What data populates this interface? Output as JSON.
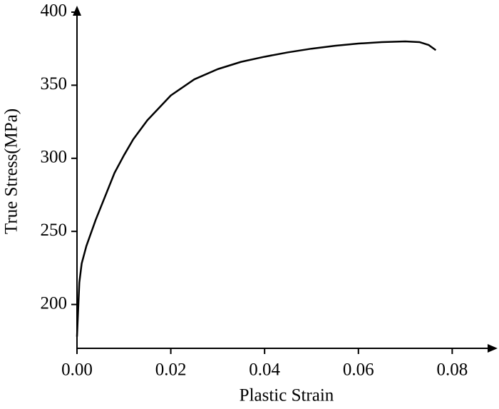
{
  "chart_data": {
    "type": "line",
    "x_label": "Plastic Strain",
    "y_label": "True Stress(MPa)",
    "x": [
      0,
      0.0005,
      0.001,
      0.002,
      0.004,
      0.006,
      0.008,
      0.01,
      0.012,
      0.015,
      0.02,
      0.025,
      0.03,
      0.035,
      0.04,
      0.045,
      0.05,
      0.055,
      0.06,
      0.065,
      0.07,
      0.073,
      0.075,
      0.0765
    ],
    "series": [
      {
        "color": "#000000",
        "values": [
          178,
          215,
          228,
          240,
          258,
          274,
          290,
          302,
          313,
          326,
          343,
          354,
          361,
          366,
          369.5,
          372.5,
          375,
          377,
          378.5,
          379.5,
          380,
          379.5,
          377.5,
          374
        ]
      }
    ],
    "xlim": [
      0,
      0.088
    ],
    "ylim": [
      170,
      400
    ],
    "xticks": [
      {
        "value": 0,
        "label": "0.00"
      },
      {
        "value": 0.02,
        "label": "0.02"
      },
      {
        "value": 0.04,
        "label": "0.04"
      },
      {
        "value": 0.06,
        "label": "0.06"
      },
      {
        "value": 0.08,
        "label": "0.08"
      }
    ],
    "yticks": [
      200,
      250,
      300,
      350,
      400
    ],
    "grid": false
  }
}
